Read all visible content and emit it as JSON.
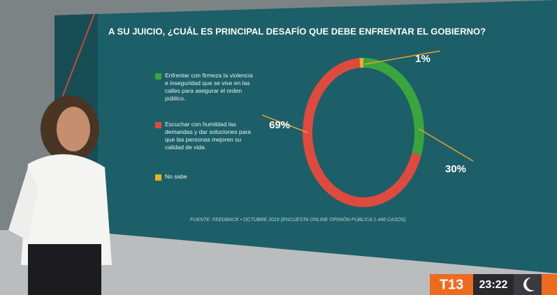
{
  "chart_data": {
    "type": "pie",
    "title": "A SU JUICIO, ¿CUÁL ES PRINCIPAL DESAFÍO QUE DEBE ENFRENTAR EL GOBIERNO?",
    "categories": [
      "Enfrentar con firmeza la violencia e inseguridad que se vive en las calles para asegurar el orden público.",
      "Escuchar con humildad las demandas y dar soluciones para que las personas mejoren su calidad de vida.",
      "No sabe"
    ],
    "values": [
      30,
      69,
      1
    ],
    "value_labels": [
      "30%",
      "69%",
      "1%"
    ],
    "colors": [
      "#3aa53c",
      "#df4a3e",
      "#e6b22a"
    ],
    "source": "FUENTE: FEEDBACK • OCTUBRE 2019 (ENCUESTA ONLINE OPINIÓN PÚBLICA 1.448 CASOS)"
  },
  "broadcast": {
    "logo": "T13",
    "time": "23:22"
  }
}
